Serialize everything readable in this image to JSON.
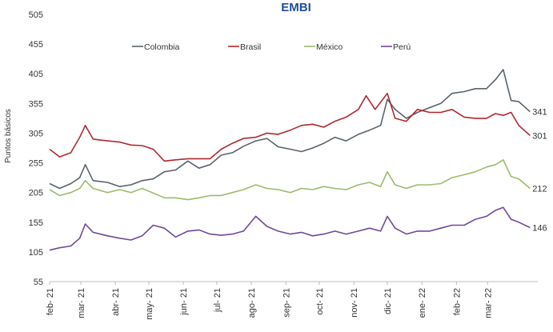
{
  "chart_data": {
    "type": "line",
    "title": "EMBI",
    "ylabel": "Puntos básicos",
    "xlabel": "",
    "ylim": [
      55,
      505
    ],
    "yticks": [
      55,
      105,
      155,
      205,
      255,
      305,
      355,
      405,
      455,
      505
    ],
    "xlim": [
      "2021-02-01",
      "2022-04-15"
    ],
    "xticks": [
      {
        "date": "2021-02-01",
        "label": "feb- 21"
      },
      {
        "date": "2021-03-01",
        "label": "mar- 21"
      },
      {
        "date": "2021-04-01",
        "label": "abr- 21"
      },
      {
        "date": "2021-05-01",
        "label": "may- 21"
      },
      {
        "date": "2021-06-01",
        "label": "jun- 21"
      },
      {
        "date": "2021-07-01",
        "label": "jul- 21"
      },
      {
        "date": "2021-08-01",
        "label": "ago- 21"
      },
      {
        "date": "2021-09-01",
        "label": "sep- 21"
      },
      {
        "date": "2021-10-01",
        "label": "oct- 21"
      },
      {
        "date": "2021-11-01",
        "label": "nov- 21"
      },
      {
        "date": "2021-12-01",
        "label": "dic- 21"
      },
      {
        "date": "2022-01-01",
        "label": "ene- 22"
      },
      {
        "date": "2022-02-01",
        "label": "feb- 22"
      },
      {
        "date": "2022-03-01",
        "label": "mar- 22"
      }
    ],
    "legend_position": "top",
    "grid": false,
    "series": [
      {
        "name": "Colombia",
        "color": "#59636b",
        "end_label": "341",
        "points": [
          [
            "2021-02-01",
            220
          ],
          [
            "2021-02-10",
            212
          ],
          [
            "2021-02-20",
            220
          ],
          [
            "2021-02-28",
            230
          ],
          [
            "2021-03-05",
            252
          ],
          [
            "2021-03-12",
            225
          ],
          [
            "2021-03-25",
            222
          ],
          [
            "2021-04-05",
            215
          ],
          [
            "2021-04-15",
            218
          ],
          [
            "2021-04-25",
            225
          ],
          [
            "2021-05-05",
            228
          ],
          [
            "2021-05-15",
            240
          ],
          [
            "2021-05-25",
            243
          ],
          [
            "2021-06-05",
            258
          ],
          [
            "2021-06-15",
            246
          ],
          [
            "2021-06-25",
            252
          ],
          [
            "2021-07-05",
            268
          ],
          [
            "2021-07-15",
            272
          ],
          [
            "2021-07-25",
            283
          ],
          [
            "2021-08-05",
            292
          ],
          [
            "2021-08-15",
            296
          ],
          [
            "2021-08-25",
            282
          ],
          [
            "2021-09-05",
            278
          ],
          [
            "2021-09-15",
            274
          ],
          [
            "2021-09-25",
            280
          ],
          [
            "2021-10-05",
            288
          ],
          [
            "2021-10-15",
            298
          ],
          [
            "2021-10-25",
            292
          ],
          [
            "2021-11-05",
            303
          ],
          [
            "2021-11-15",
            310
          ],
          [
            "2021-11-25",
            318
          ],
          [
            "2021-12-01",
            362
          ],
          [
            "2021-12-08",
            345
          ],
          [
            "2021-12-18",
            330
          ],
          [
            "2021-12-28",
            340
          ],
          [
            "2022-01-08",
            348
          ],
          [
            "2022-01-18",
            355
          ],
          [
            "2022-01-28",
            372
          ],
          [
            "2022-02-08",
            375
          ],
          [
            "2022-02-18",
            380
          ],
          [
            "2022-02-28",
            380
          ],
          [
            "2022-03-08",
            395
          ],
          [
            "2022-03-15",
            412
          ],
          [
            "2022-03-22",
            360
          ],
          [
            "2022-03-29",
            358
          ],
          [
            "2022-04-08",
            341
          ]
        ]
      },
      {
        "name": "Brasil",
        "color": "#b0282f",
        "end_label": "301",
        "points": [
          [
            "2021-02-01",
            278
          ],
          [
            "2021-02-10",
            265
          ],
          [
            "2021-02-20",
            272
          ],
          [
            "2021-02-28",
            298
          ],
          [
            "2021-03-05",
            318
          ],
          [
            "2021-03-12",
            295
          ],
          [
            "2021-03-25",
            292
          ],
          [
            "2021-04-05",
            290
          ],
          [
            "2021-04-15",
            285
          ],
          [
            "2021-04-25",
            284
          ],
          [
            "2021-05-05",
            278
          ],
          [
            "2021-05-15",
            258
          ],
          [
            "2021-05-25",
            260
          ],
          [
            "2021-06-05",
            262
          ],
          [
            "2021-06-15",
            262
          ],
          [
            "2021-06-25",
            262
          ],
          [
            "2021-07-05",
            278
          ],
          [
            "2021-07-15",
            288
          ],
          [
            "2021-07-25",
            296
          ],
          [
            "2021-08-05",
            298
          ],
          [
            "2021-08-15",
            305
          ],
          [
            "2021-08-25",
            303
          ],
          [
            "2021-09-05",
            310
          ],
          [
            "2021-09-15",
            318
          ],
          [
            "2021-09-25",
            320
          ],
          [
            "2021-10-05",
            315
          ],
          [
            "2021-10-15",
            325
          ],
          [
            "2021-10-25",
            332
          ],
          [
            "2021-11-05",
            345
          ],
          [
            "2021-11-12",
            368
          ],
          [
            "2021-11-20",
            345
          ],
          [
            "2021-12-01",
            372
          ],
          [
            "2021-12-08",
            330
          ],
          [
            "2021-12-18",
            325
          ],
          [
            "2021-12-28",
            345
          ],
          [
            "2022-01-08",
            340
          ],
          [
            "2022-01-18",
            340
          ],
          [
            "2022-01-28",
            345
          ],
          [
            "2022-02-08",
            332
          ],
          [
            "2022-02-18",
            330
          ],
          [
            "2022-02-28",
            330
          ],
          [
            "2022-03-08",
            338
          ],
          [
            "2022-03-15",
            335
          ],
          [
            "2022-03-22",
            340
          ],
          [
            "2022-03-29",
            318
          ],
          [
            "2022-04-08",
            301
          ]
        ]
      },
      {
        "name": "México",
        "color": "#9dbb6a",
        "end_label": "212",
        "points": [
          [
            "2021-02-01",
            210
          ],
          [
            "2021-02-10",
            200
          ],
          [
            "2021-02-20",
            205
          ],
          [
            "2021-02-28",
            212
          ],
          [
            "2021-03-05",
            225
          ],
          [
            "2021-03-12",
            212
          ],
          [
            "2021-03-25",
            205
          ],
          [
            "2021-04-05",
            210
          ],
          [
            "2021-04-15",
            205
          ],
          [
            "2021-04-25",
            212
          ],
          [
            "2021-05-05",
            204
          ],
          [
            "2021-05-15",
            196
          ],
          [
            "2021-05-25",
            196
          ],
          [
            "2021-06-05",
            193
          ],
          [
            "2021-06-15",
            196
          ],
          [
            "2021-06-25",
            200
          ],
          [
            "2021-07-05",
            200
          ],
          [
            "2021-07-15",
            205
          ],
          [
            "2021-07-25",
            210
          ],
          [
            "2021-08-05",
            218
          ],
          [
            "2021-08-15",
            212
          ],
          [
            "2021-08-25",
            210
          ],
          [
            "2021-09-05",
            205
          ],
          [
            "2021-09-15",
            212
          ],
          [
            "2021-09-25",
            210
          ],
          [
            "2021-10-05",
            215
          ],
          [
            "2021-10-15",
            212
          ],
          [
            "2021-10-25",
            210
          ],
          [
            "2021-11-05",
            218
          ],
          [
            "2021-11-15",
            222
          ],
          [
            "2021-11-25",
            215
          ],
          [
            "2021-12-01",
            240
          ],
          [
            "2021-12-08",
            218
          ],
          [
            "2021-12-18",
            212
          ],
          [
            "2021-12-28",
            218
          ],
          [
            "2022-01-08",
            218
          ],
          [
            "2022-01-18",
            220
          ],
          [
            "2022-01-28",
            230
          ],
          [
            "2022-02-08",
            235
          ],
          [
            "2022-02-18",
            240
          ],
          [
            "2022-02-28",
            248
          ],
          [
            "2022-03-08",
            252
          ],
          [
            "2022-03-15",
            260
          ],
          [
            "2022-03-22",
            232
          ],
          [
            "2022-03-29",
            228
          ],
          [
            "2022-04-08",
            212
          ]
        ]
      },
      {
        "name": "Perú",
        "color": "#6e4a9a",
        "end_label": "146",
        "points": [
          [
            "2021-02-01",
            108
          ],
          [
            "2021-02-10",
            112
          ],
          [
            "2021-02-20",
            115
          ],
          [
            "2021-02-28",
            128
          ],
          [
            "2021-03-05",
            152
          ],
          [
            "2021-03-12",
            138
          ],
          [
            "2021-03-25",
            132
          ],
          [
            "2021-04-05",
            128
          ],
          [
            "2021-04-15",
            125
          ],
          [
            "2021-04-25",
            132
          ],
          [
            "2021-05-05",
            150
          ],
          [
            "2021-05-15",
            145
          ],
          [
            "2021-05-25",
            130
          ],
          [
            "2021-06-05",
            140
          ],
          [
            "2021-06-15",
            142
          ],
          [
            "2021-06-25",
            135
          ],
          [
            "2021-07-05",
            133
          ],
          [
            "2021-07-15",
            135
          ],
          [
            "2021-07-25",
            140
          ],
          [
            "2021-08-05",
            165
          ],
          [
            "2021-08-15",
            148
          ],
          [
            "2021-08-25",
            140
          ],
          [
            "2021-09-05",
            135
          ],
          [
            "2021-09-15",
            138
          ],
          [
            "2021-09-25",
            132
          ],
          [
            "2021-10-05",
            135
          ],
          [
            "2021-10-15",
            140
          ],
          [
            "2021-10-25",
            135
          ],
          [
            "2021-11-05",
            140
          ],
          [
            "2021-11-15",
            145
          ],
          [
            "2021-11-25",
            140
          ],
          [
            "2021-12-01",
            165
          ],
          [
            "2021-12-08",
            145
          ],
          [
            "2021-12-18",
            135
          ],
          [
            "2021-12-28",
            140
          ],
          [
            "2022-01-08",
            140
          ],
          [
            "2022-01-18",
            145
          ],
          [
            "2022-01-28",
            150
          ],
          [
            "2022-02-08",
            150
          ],
          [
            "2022-02-18",
            160
          ],
          [
            "2022-02-28",
            165
          ],
          [
            "2022-03-08",
            175
          ],
          [
            "2022-03-15",
            180
          ],
          [
            "2022-03-22",
            160
          ],
          [
            "2022-03-29",
            155
          ],
          [
            "2022-04-08",
            146
          ]
        ]
      }
    ]
  }
}
